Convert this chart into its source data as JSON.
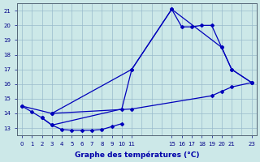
{
  "xlabel": "Graphe des températures (°C)",
  "bg_color": "#cce8e8",
  "line_color": "#0000bb",
  "grid_color": "#99bbcc",
  "xlim": [
    -0.5,
    23.5
  ],
  "ylim": [
    12.5,
    21.5
  ],
  "xticks": [
    0,
    1,
    2,
    3,
    4,
    5,
    6,
    7,
    8,
    9,
    10,
    11,
    15,
    16,
    17,
    18,
    19,
    20,
    21,
    23
  ],
  "yticks": [
    13,
    14,
    15,
    16,
    17,
    18,
    19,
    20,
    21
  ],
  "series_bottom_x": [
    2,
    3,
    4,
    5,
    6,
    7,
    8,
    9,
    10
  ],
  "series_bottom_y": [
    13.7,
    13.2,
    12.9,
    12.85,
    12.85,
    12.85,
    12.9,
    13.1,
    13.3
  ],
  "series_main_x": [
    0,
    1,
    2,
    3,
    10,
    11,
    15,
    16,
    17,
    18,
    19,
    20,
    21,
    23
  ],
  "series_main_y": [
    14.5,
    14.1,
    13.7,
    13.2,
    14.3,
    17.0,
    21.1,
    19.9,
    19.9,
    20.0,
    20.0,
    18.5,
    17.0,
    16.1
  ],
  "series_slow_x": [
    0,
    3,
    11,
    19,
    20,
    21,
    23
  ],
  "series_slow_y": [
    14.5,
    14.0,
    14.3,
    15.2,
    15.5,
    15.8,
    16.1
  ],
  "series_upper_x": [
    3,
    11,
    15,
    20,
    21,
    23
  ],
  "series_upper_y": [
    14.0,
    17.0,
    21.1,
    18.5,
    17.0,
    16.1
  ]
}
